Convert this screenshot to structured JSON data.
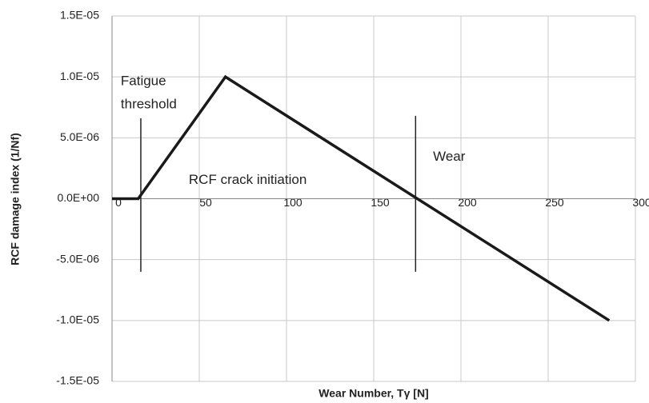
{
  "chart_data": {
    "type": "line",
    "x_label": "Wear Number, Tγ [N]",
    "y_label": "RCF damage index (1/Nf)",
    "x": [
      0,
      15,
      65,
      175,
      285
    ],
    "series": [
      {
        "color": "#1a1a1a",
        "values": [
          0,
          0,
          1e-05,
          0,
          -1e-05
        ]
      }
    ],
    "xlim": [
      0,
      300
    ],
    "xticks": [
      0,
      50,
      100,
      150,
      200,
      250,
      300
    ],
    "ylim": [
      -1.5e-05,
      1.5e-05
    ],
    "yticks": [
      {
        "value": -1.5e-05,
        "label": "-1.5E-05"
      },
      {
        "value": -1e-05,
        "label": "-1.0E-05"
      },
      {
        "value": -5e-06,
        "label": "-5.0E-06"
      },
      {
        "value": 0,
        "label": "0.0E+00"
      },
      {
        "value": 5e-06,
        "label": "5.0E-06"
      },
      {
        "value": 1e-05,
        "label": "1.0E-05"
      },
      {
        "value": 1.5e-05,
        "label": "1.5E-05"
      }
    ],
    "grid": true,
    "vlines": [
      {
        "x": 16.5,
        "y": [
          6.6e-06,
          -6e-06
        ]
      },
      {
        "x": 174,
        "y": [
          6.8e-06,
          -6e-06
        ]
      }
    ],
    "annotations": [
      {
        "text": "Fatigue",
        "x": 5,
        "y": 9.6e-06
      },
      {
        "text": "threshold",
        "x": 5,
        "y": 7.7e-06
      },
      {
        "text": "RCF crack initiation",
        "x": 44,
        "y": 1.5e-06
      },
      {
        "text": "Wear",
        "x": 184,
        "y": 3.4e-06
      }
    ]
  }
}
